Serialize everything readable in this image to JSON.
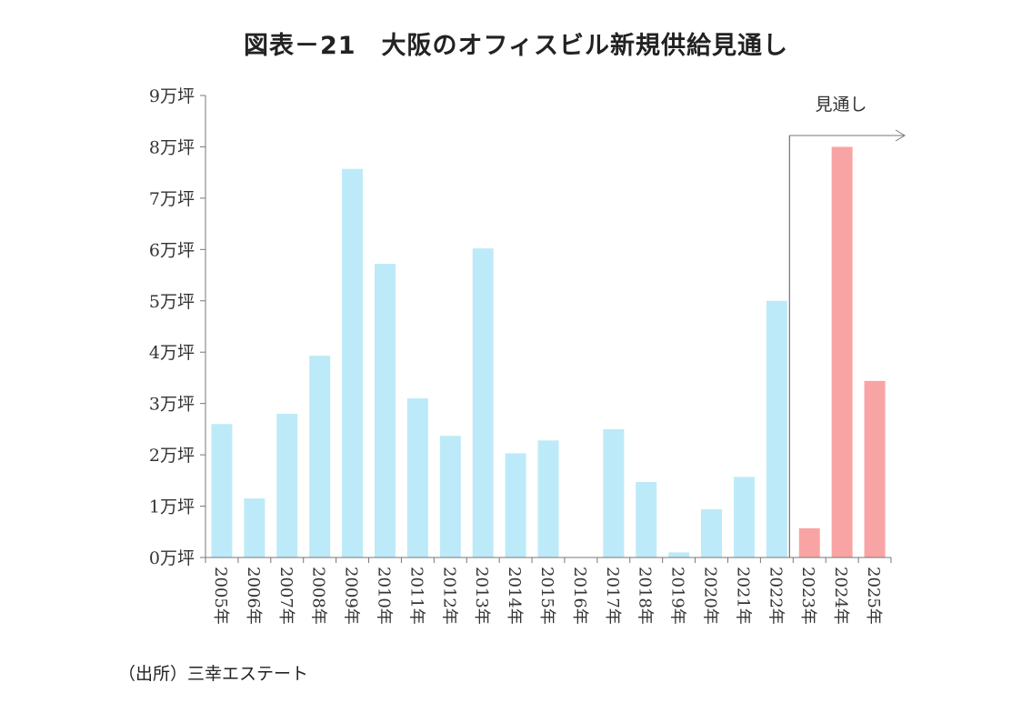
{
  "chart_data": {
    "type": "bar",
    "title": "図表－21　大阪のオフィスビル新規供給見通し",
    "xlabel": "",
    "ylabel": "",
    "ylim": [
      0,
      9
    ],
    "yticks": [
      0,
      1,
      2,
      3,
      4,
      5,
      6,
      7,
      8,
      9
    ],
    "ytick_labels": [
      "0万坪",
      "1万坪",
      "2万坪",
      "3万坪",
      "4万坪",
      "5万坪",
      "6万坪",
      "7万坪",
      "8万坪",
      "9万坪"
    ],
    "categories": [
      "2005年",
      "2006年",
      "2007年",
      "2008年",
      "2009年",
      "2010年",
      "2011年",
      "2012年",
      "2013年",
      "2014年",
      "2015年",
      "2016年",
      "2017年",
      "2018年",
      "2019年",
      "2020年",
      "2021年",
      "2022年",
      "2023年",
      "2024年",
      "2025年"
    ],
    "values": [
      2.6,
      1.15,
      2.8,
      3.93,
      7.57,
      5.72,
      3.1,
      2.37,
      6.02,
      2.03,
      2.28,
      0,
      2.5,
      1.47,
      0.1,
      0.94,
      1.57,
      5.0,
      0.57,
      8.0,
      3.44
    ],
    "forecast_start_index": 18,
    "forecast_label": "見通し",
    "colors": {
      "actual": "#bdeaf8",
      "forecast": "#f9a4a4",
      "axis": "#777777"
    },
    "grid": false,
    "legend": "none"
  },
  "source": "（出所）三幸エステート"
}
